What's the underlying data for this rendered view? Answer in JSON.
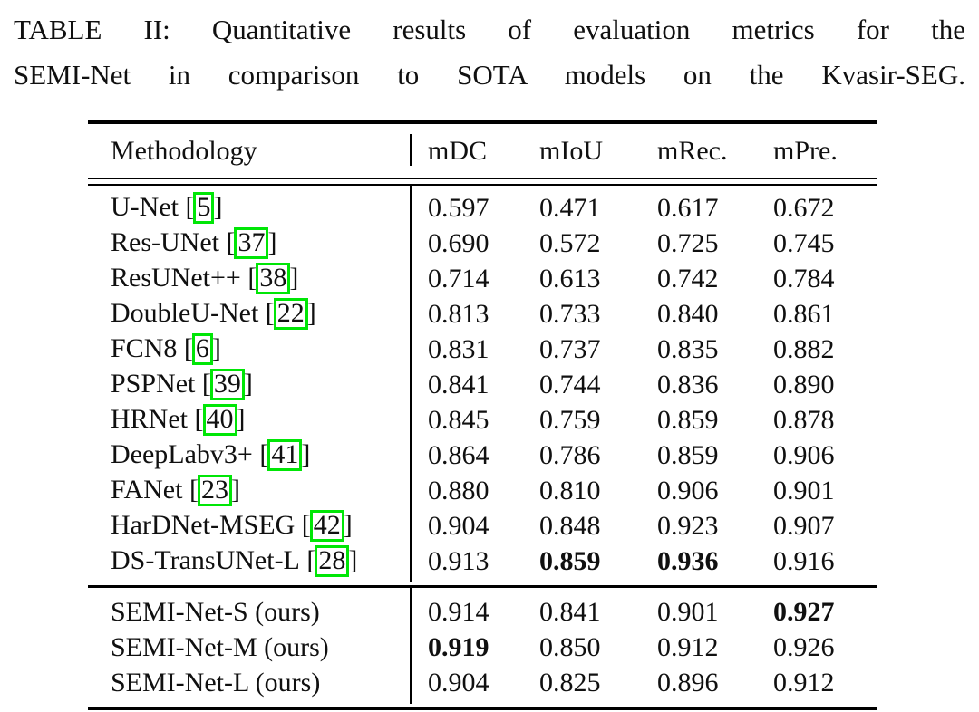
{
  "caption": {
    "line1": "TABLE II: Quantitative results of evaluation metrics for the",
    "line2": "SEMI-Net in comparison to SOTA models on the Kvasir-SEG."
  },
  "table": {
    "columns": [
      "Methodology",
      "mDC",
      "mIoU",
      "mRec.",
      "mPre."
    ],
    "sota_rows": [
      {
        "method": "U-Net",
        "cite": "5",
        "values": [
          "0.597",
          "0.471",
          "0.617",
          "0.672"
        ],
        "bold": []
      },
      {
        "method": "Res-UNet",
        "cite": "37",
        "values": [
          "0.690",
          "0.572",
          "0.725",
          "0.745"
        ],
        "bold": []
      },
      {
        "method": "ResUNet++",
        "cite": "38",
        "values": [
          "0.714",
          "0.613",
          "0.742",
          "0.784"
        ],
        "bold": []
      },
      {
        "method": "DoubleU-Net",
        "cite": "22",
        "values": [
          "0.813",
          "0.733",
          "0.840",
          "0.861"
        ],
        "bold": []
      },
      {
        "method": "FCN8",
        "cite": "6",
        "values": [
          "0.831",
          "0.737",
          "0.835",
          "0.882"
        ],
        "bold": []
      },
      {
        "method": "PSPNet",
        "cite": "39",
        "values": [
          "0.841",
          "0.744",
          "0.836",
          "0.890"
        ],
        "bold": []
      },
      {
        "method": "HRNet",
        "cite": "40",
        "values": [
          "0.845",
          "0.759",
          "0.859",
          "0.878"
        ],
        "bold": []
      },
      {
        "method": "DeepLabv3+",
        "cite": "41",
        "values": [
          "0.864",
          "0.786",
          "0.859",
          "0.906"
        ],
        "bold": []
      },
      {
        "method": "FANet",
        "cite": "23",
        "values": [
          "0.880",
          "0.810",
          "0.906",
          "0.901"
        ],
        "bold": []
      },
      {
        "method": "HarDNet-MSEG",
        "cite": "42",
        "values": [
          "0.904",
          "0.848",
          "0.923",
          "0.907"
        ],
        "bold": []
      },
      {
        "method": "DS-TransUNet-L",
        "cite": "28",
        "values": [
          "0.913",
          "0.859",
          "0.936",
          "0.916"
        ],
        "bold": [
          1,
          2
        ]
      }
    ],
    "ours_rows": [
      {
        "method": "SEMI-Net-S (ours)",
        "values": [
          "0.914",
          "0.841",
          "0.901",
          "0.927"
        ],
        "bold": [
          3
        ]
      },
      {
        "method": "SEMI-Net-M (ours)",
        "values": [
          "0.919",
          "0.850",
          "0.912",
          "0.926"
        ],
        "bold": [
          0
        ]
      },
      {
        "method": "SEMI-Net-L (ours)",
        "values": [
          "0.904",
          "0.825",
          "0.896",
          "0.912"
        ],
        "bold": []
      }
    ]
  },
  "colors": {
    "citation_box": "#00e606",
    "text": "#101010",
    "rule": "#000000"
  }
}
